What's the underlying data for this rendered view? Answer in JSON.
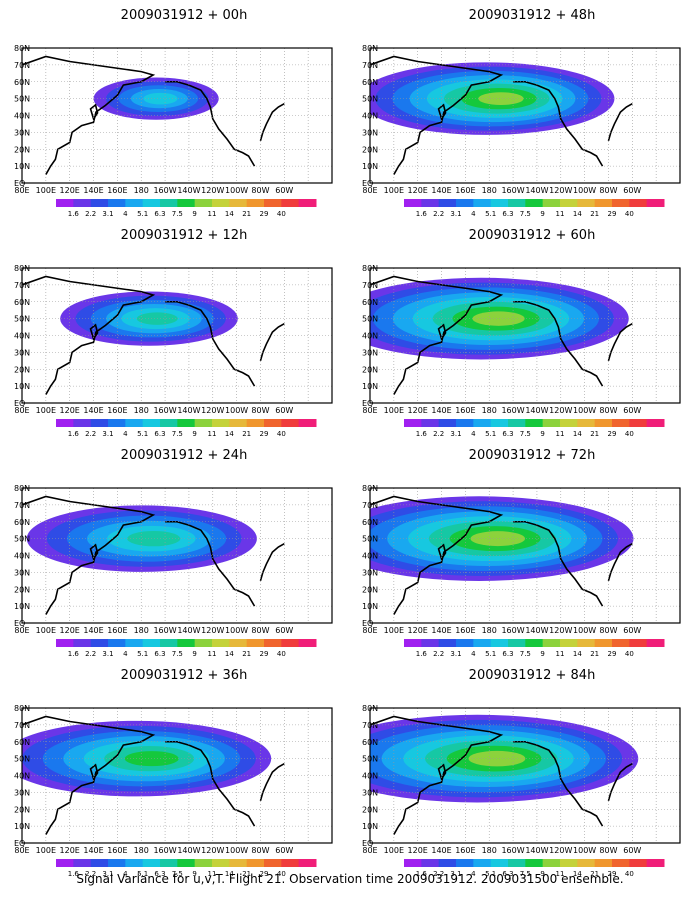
{
  "footer": "Signal Variance for u,v,T. Flight 21. Observation time 2009031912. 2009031500 ensemble.",
  "colorbar": {
    "labels": [
      "1.6",
      "2.2",
      "3.1",
      "4",
      "5.1",
      "6.3",
      "7.5",
      "9",
      "11",
      "14",
      "21",
      "29",
      "40"
    ],
    "colors": [
      "#a020f0",
      "#6a36e8",
      "#2f4ce6",
      "#1a78ee",
      "#19a8f0",
      "#17c8e0",
      "#16c8a4",
      "#15c83c",
      "#8cd23c",
      "#c4d23a",
      "#e6b83a",
      "#f0962e",
      "#f0642e",
      "#f03c3c",
      "#f01e78"
    ]
  },
  "axes": {
    "x_ticks": [
      "80E",
      "100E",
      "120E",
      "140E",
      "160E",
      "180",
      "160W",
      "140W",
      "120W",
      "100W",
      "80W",
      "60W"
    ],
    "y_ticks": [
      "80N",
      "70N",
      "60N",
      "50N",
      "40N",
      "30N",
      "20N",
      "10N",
      "EQ"
    ]
  },
  "chart_data": [
    {
      "type": "heatmap",
      "title": "2009031912 + 00h",
      "field": "signal variance",
      "max_level": "5.1"
    },
    {
      "type": "heatmap",
      "title": "2009031912 + 12h",
      "field": "signal variance",
      "max_level": "6.3"
    },
    {
      "type": "heatmap",
      "title": "2009031912 + 24h",
      "field": "signal variance",
      "max_level": "6.3"
    },
    {
      "type": "heatmap",
      "title": "2009031912 + 36h",
      "field": "signal variance",
      "max_level": "7.5"
    },
    {
      "type": "heatmap",
      "title": "2009031912 + 48h",
      "field": "signal variance",
      "max_level": "9"
    },
    {
      "type": "heatmap",
      "title": "2009031912 + 60h",
      "field": "signal variance",
      "max_level": "9"
    },
    {
      "type": "heatmap",
      "title": "2009031912 + 72h",
      "field": "signal variance",
      "max_level": "9"
    },
    {
      "type": "heatmap",
      "title": "2009031912 + 84h",
      "field": "signal variance",
      "max_level": "9"
    }
  ]
}
